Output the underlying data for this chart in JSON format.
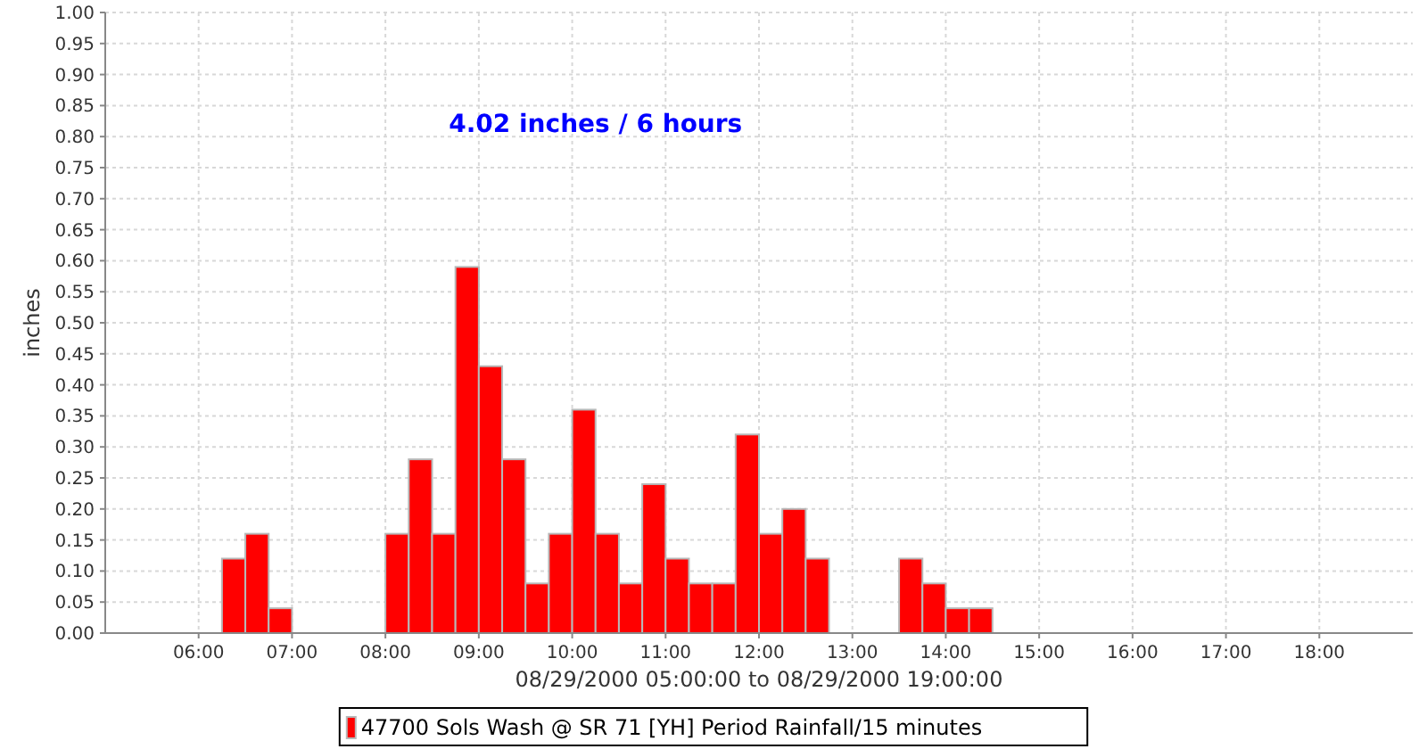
{
  "chart_data": {
    "type": "histogram",
    "annotations": [
      "4.02 inches / 6 hours"
    ],
    "xlabel": "08/29/2000 05:00:00 to 08/29/2000 19:00:00",
    "ylabel": "inches",
    "bins": [
      6.25,
      6.5,
      6.75,
      7,
      7.25,
      7.5,
      7.75,
      8,
      8.25,
      8.5,
      8.75,
      9,
      9.25,
      9.5,
      9.75,
      10,
      10.25,
      10.5,
      10.75,
      11,
      11.25,
      11.5,
      11.75,
      12,
      12.25,
      12.5,
      12.75,
      13,
      13.25,
      13.5,
      13.75,
      14,
      14.25,
      14.5
    ],
    "series": [
      {
        "name": "47700 Sols Wash @ SR 71  [YH] Period Rainfall/15 minutes",
        "color": "#ff0000",
        "values": [
          0.12,
          0.16,
          0.04,
          0,
          0,
          0,
          0,
          0.16,
          0.28,
          0.16,
          0.59,
          0.43,
          0.28,
          0.08,
          0.16,
          0.36,
          0.16,
          0.08,
          0.24,
          0.12,
          0.08,
          0.08,
          0.32,
          0.16,
          0.2,
          0.12,
          0,
          0,
          0,
          0.12,
          0.08,
          0.04,
          0.04
        ]
      }
    ],
    "xlim": [
      5,
      19
    ],
    "xticks": [
      {
        "value": 6,
        "label": "06:00"
      },
      {
        "value": 7,
        "label": "07:00"
      },
      {
        "value": 8,
        "label": "08:00"
      },
      {
        "value": 9,
        "label": "09:00"
      },
      {
        "value": 10,
        "label": "10:00"
      },
      {
        "value": 11,
        "label": "11:00"
      },
      {
        "value": 12,
        "label": "12:00"
      },
      {
        "value": 13,
        "label": "13:00"
      },
      {
        "value": 14,
        "label": "14:00"
      },
      {
        "value": 15,
        "label": "15:00"
      },
      {
        "value": 16,
        "label": "16:00"
      },
      {
        "value": 17,
        "label": "17:00"
      },
      {
        "value": 18,
        "label": "18:00"
      }
    ],
    "ylim": [
      0,
      1
    ],
    "yticks": [
      {
        "value": 0,
        "label": "0.00"
      },
      {
        "value": 0.05,
        "label": "0.05"
      },
      {
        "value": 0.1,
        "label": "0.10"
      },
      {
        "value": 0.15,
        "label": "0.15"
      },
      {
        "value": 0.2,
        "label": "0.20"
      },
      {
        "value": 0.25,
        "label": "0.25"
      },
      {
        "value": 0.3,
        "label": "0.30"
      },
      {
        "value": 0.35,
        "label": "0.35"
      },
      {
        "value": 0.4,
        "label": "0.40"
      },
      {
        "value": 0.45,
        "label": "0.45"
      },
      {
        "value": 0.5,
        "label": "0.50"
      },
      {
        "value": 0.55,
        "label": "0.55"
      },
      {
        "value": 0.6,
        "label": "0.60"
      },
      {
        "value": 0.65,
        "label": "0.65"
      },
      {
        "value": 0.7,
        "label": "0.70"
      },
      {
        "value": 0.75,
        "label": "0.75"
      },
      {
        "value": 0.8,
        "label": "0.80"
      },
      {
        "value": 0.85,
        "label": "0.85"
      },
      {
        "value": 0.9,
        "label": "0.90"
      },
      {
        "value": 0.95,
        "label": "0.95"
      },
      {
        "value": 1,
        "label": "1.00"
      }
    ],
    "grid": true,
    "legend": "bottom"
  }
}
